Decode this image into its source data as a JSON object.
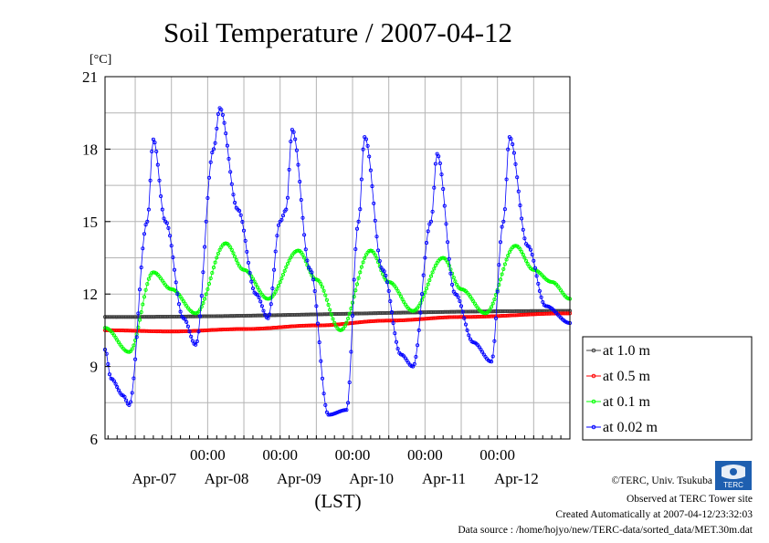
{
  "title": "Soil Temperature / 2007-04-12",
  "credits": {
    "copyright": "©TERC, Univ. Tsukuba",
    "observed": "Observed at TERC Tower site",
    "created": "Created Automatically at 2007-04-12/23:32:03",
    "source": "Data source : /home/hojyo/new/TERC-data/sorted_data/MET.30m.dat",
    "logo_text": "TERC"
  },
  "chart_data": {
    "type": "line",
    "title": "Soil Temperature / 2007-04-12",
    "ylabel": "[°C]",
    "xlabel": "(LST)",
    "ylim": [
      6,
      21
    ],
    "yticks": [
      6,
      9,
      12,
      15,
      18,
      21
    ],
    "xlim": [
      "2007-04-06T14:00",
      "2007-04-12T24:00"
    ],
    "time_ticks": [
      "00:00",
      "00:00",
      "00:00",
      "00:00",
      "00:00"
    ],
    "date_labels": [
      "Apr-07",
      "Apr-08",
      "Apr-09",
      "Apr-10",
      "Apr-11",
      "Apr-12"
    ],
    "grid": true,
    "legend_position": "right",
    "series": [
      {
        "name": "at 1.0 m",
        "color": "#404040",
        "x": [
          "04-06 14:00",
          "04-12 24:00"
        ],
        "y": [
          11.05,
          11.3
        ]
      },
      {
        "name": "at 0.5 m",
        "color": "#ff0000",
        "x": [
          "04-06 14:00",
          "04-07 12:00",
          "04-08 12:00",
          "04-09 12:00",
          "04-10 12:00",
          "04-11 12:00",
          "04-12 24:00"
        ],
        "y": [
          10.5,
          10.45,
          10.55,
          10.7,
          10.9,
          11.05,
          11.2
        ]
      },
      {
        "name": "at 0.1 m",
        "color": "#00ff00",
        "x": [
          "04-06 14:00",
          "04-06 22:00",
          "04-07 06:00",
          "04-07 12:00",
          "04-07 20:00",
          "04-08 06:00",
          "04-08 12:00",
          "04-08 20:00",
          "04-09 06:00",
          "04-09 12:00",
          "04-09 20:00",
          "04-10 06:00",
          "04-10 12:00",
          "04-10 20:00",
          "04-11 06:00",
          "04-11 12:00",
          "04-11 20:00",
          "04-12 06:00",
          "04-12 12:00",
          "04-12 18:00",
          "04-12 24:00"
        ],
        "y": [
          10.6,
          9.6,
          12.9,
          12.2,
          11.2,
          14.1,
          13.0,
          11.8,
          13.8,
          12.6,
          10.5,
          13.8,
          12.5,
          11.3,
          13.5,
          12.2,
          11.2,
          14.0,
          13.0,
          12.5,
          11.8
        ]
      },
      {
        "name": "at 0.02 m",
        "color": "#0000ff",
        "x": [
          "04-06 14:00",
          "04-06 16:00",
          "04-06 20:00",
          "04-06 22:00",
          "04-07 04:00",
          "04-07 06:00",
          "04-07 10:00",
          "04-07 16:00",
          "04-07 20:00",
          "04-08 02:00",
          "04-08 04:00",
          "04-08 10:00",
          "04-08 16:00",
          "04-08 20:00",
          "04-09 00:00",
          "04-09 02:00",
          "04-09 04:00",
          "04-09 10:00",
          "04-09 16:00",
          "04-09 22:00",
          "04-10 02:00",
          "04-10 04:00",
          "04-10 10:00",
          "04-10 16:00",
          "04-10 20:00",
          "04-11 02:00",
          "04-11 04:00",
          "04-11 10:00",
          "04-11 16:00",
          "04-11 22:00",
          "04-12 02:00",
          "04-12 04:00",
          "04-12 10:00",
          "04-12 16:00",
          "04-12 24:00"
        ],
        "y": [
          9.7,
          8.5,
          7.8,
          7.4,
          15.0,
          18.4,
          15.0,
          11.0,
          9.9,
          18.0,
          19.7,
          15.5,
          12.0,
          11.0,
          15.0,
          15.5,
          18.8,
          13.0,
          7.0,
          7.2,
          15.0,
          18.5,
          13.0,
          9.5,
          9.0,
          15.0,
          17.8,
          12.0,
          10.0,
          9.2,
          15.0,
          18.5,
          14.0,
          11.5,
          10.8
        ]
      }
    ]
  }
}
